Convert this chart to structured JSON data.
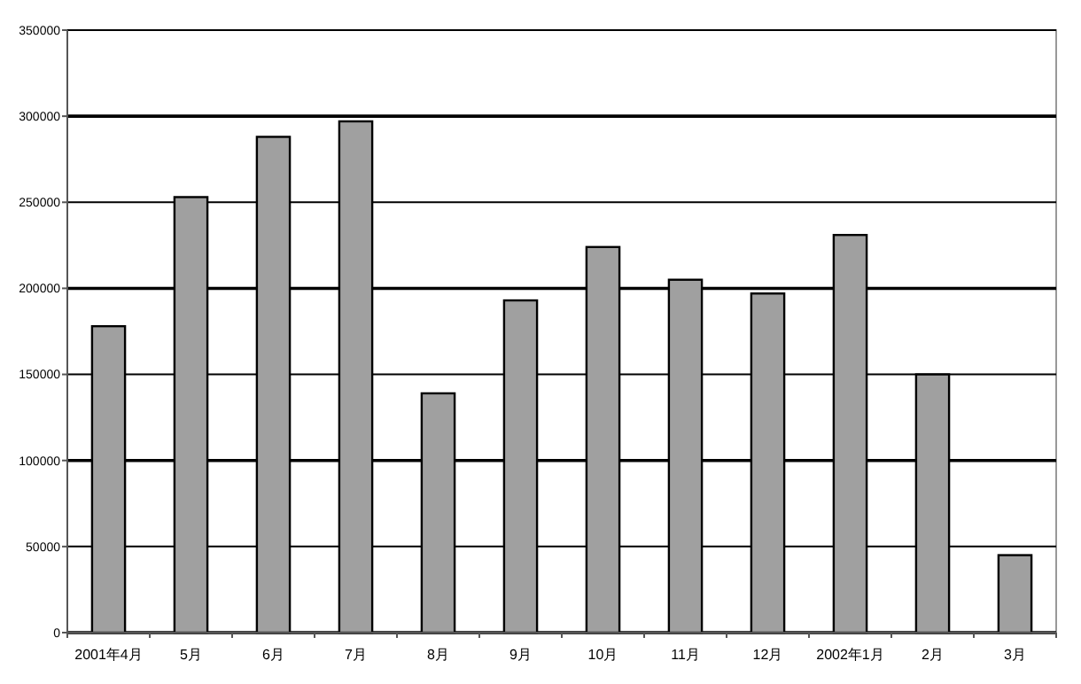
{
  "chart_data": {
    "type": "bar",
    "categories": [
      "2001年4月",
      "5月",
      "6月",
      "7月",
      "8月",
      "9月",
      "10月",
      "11月",
      "12月",
      "2002年1月",
      "2月",
      "3月"
    ],
    "values": [
      178000,
      253000,
      288000,
      297000,
      139000,
      193000,
      224000,
      205000,
      197000,
      231000,
      150000,
      45000
    ],
    "color": "#a0a0a0",
    "ylim": [
      0,
      350000
    ],
    "yticks": [
      0,
      50000,
      100000,
      150000,
      200000,
      250000,
      300000,
      350000
    ],
    "grid": "y"
  }
}
